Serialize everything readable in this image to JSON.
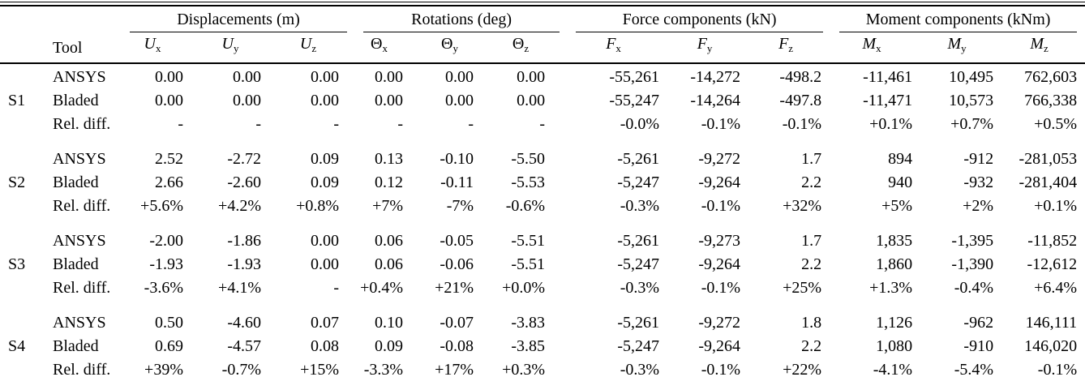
{
  "table": {
    "tool_header": "Tool",
    "groups": [
      {
        "label": "Displacements (m)",
        "cols": [
          {
            "base": "U",
            "sub": "x",
            "italic": true
          },
          {
            "base": "U",
            "sub": "y",
            "italic": true
          },
          {
            "base": "U",
            "sub": "z",
            "italic": true
          }
        ]
      },
      {
        "label": "Rotations (deg)",
        "cols": [
          {
            "base": "Θ",
            "sub": "x",
            "italic": false
          },
          {
            "base": "Θ",
            "sub": "y",
            "italic": false
          },
          {
            "base": "Θ",
            "sub": "z",
            "italic": false
          }
        ]
      },
      {
        "label": "Force components (kN)",
        "cols": [
          {
            "base": "F",
            "sub": "x",
            "italic": true
          },
          {
            "base": "F",
            "sub": "y",
            "italic": true
          },
          {
            "base": "F",
            "sub": "z",
            "italic": true
          }
        ]
      },
      {
        "label": "Moment components (kNm)",
        "cols": [
          {
            "base": "M",
            "sub": "x",
            "italic": true
          },
          {
            "base": "M",
            "sub": "y",
            "italic": true
          },
          {
            "base": "M",
            "sub": "z",
            "italic": true
          }
        ]
      }
    ],
    "sections": [
      {
        "id": "S1",
        "rows": [
          {
            "tool": "ANSYS",
            "values": [
              "0.00",
              "0.00",
              "0.00",
              "0.00",
              "0.00",
              "0.00",
              "-55,261",
              "-14,272",
              "-498.2",
              "-11,461",
              "10,495",
              "762,603"
            ]
          },
          {
            "tool": "Bladed",
            "values": [
              "0.00",
              "0.00",
              "0.00",
              "0.00",
              "0.00",
              "0.00",
              "-55,247",
              "-14,264",
              "-497.8",
              "-11,471",
              "10,573",
              "766,338"
            ]
          },
          {
            "tool": "Rel. diff.",
            "values": [
              "-",
              "-",
              "-",
              "-",
              "-",
              "-",
              "-0.0%",
              "-0.1%",
              "-0.1%",
              "+0.1%",
              "+0.7%",
              "+0.5%"
            ]
          }
        ]
      },
      {
        "id": "S2",
        "rows": [
          {
            "tool": "ANSYS",
            "values": [
              "2.52",
              "-2.72",
              "0.09",
              "0.13",
              "-0.10",
              "-5.50",
              "-5,261",
              "-9,272",
              "1.7",
              "894",
              "-912",
              "-281,053"
            ]
          },
          {
            "tool": "Bladed",
            "values": [
              "2.66",
              "-2.60",
              "0.09",
              "0.12",
              "-0.11",
              "-5.53",
              "-5,247",
              "-9,264",
              "2.2",
              "940",
              "-932",
              "-281,404"
            ]
          },
          {
            "tool": "Rel. diff.",
            "values": [
              "+5.6%",
              "+4.2%",
              "+0.8%",
              "+7%",
              "-7%",
              "-0.6%",
              "-0.3%",
              "-0.1%",
              "+32%",
              "+5%",
              "+2%",
              "+0.1%"
            ]
          }
        ]
      },
      {
        "id": "S3",
        "rows": [
          {
            "tool": "ANSYS",
            "values": [
              "-2.00",
              "-1.86",
              "0.00",
              "0.06",
              "-0.05",
              "-5.51",
              "-5,261",
              "-9,273",
              "1.7",
              "1,835",
              "-1,395",
              "-11,852"
            ]
          },
          {
            "tool": "Bladed",
            "values": [
              "-1.93",
              "-1.93",
              "0.00",
              "0.06",
              "-0.06",
              "-5.51",
              "-5,247",
              "-9,264",
              "2.2",
              "1,860",
              "-1,390",
              "-12,612"
            ]
          },
          {
            "tool": "Rel. diff.",
            "values": [
              "-3.6%",
              "+4.1%",
              "-",
              "+0.4%",
              "+21%",
              "+0.0%",
              "-0.3%",
              "-0.1%",
              "+25%",
              "+1.3%",
              "-0.4%",
              "+6.4%"
            ]
          }
        ]
      },
      {
        "id": "S4",
        "rows": [
          {
            "tool": "ANSYS",
            "values": [
              "0.50",
              "-4.60",
              "0.07",
              "0.10",
              "-0.07",
              "-3.83",
              "-5,261",
              "-9,272",
              "1.8",
              "1,126",
              "-962",
              "146,111"
            ]
          },
          {
            "tool": "Bladed",
            "values": [
              "0.69",
              "-4.57",
              "0.08",
              "0.09",
              "-0.08",
              "-3.85",
              "-5,247",
              "-9,264",
              "2.2",
              "1,080",
              "-910",
              "146,020"
            ]
          },
          {
            "tool": "Rel. diff.",
            "values": [
              "+39%",
              "-0.7%",
              "+15%",
              "-3.3%",
              "+17%",
              "+0.3%",
              "-0.3%",
              "-0.1%",
              "+22%",
              "-4.1%",
              "-5.4%",
              "-0.1%"
            ]
          }
        ]
      }
    ]
  }
}
